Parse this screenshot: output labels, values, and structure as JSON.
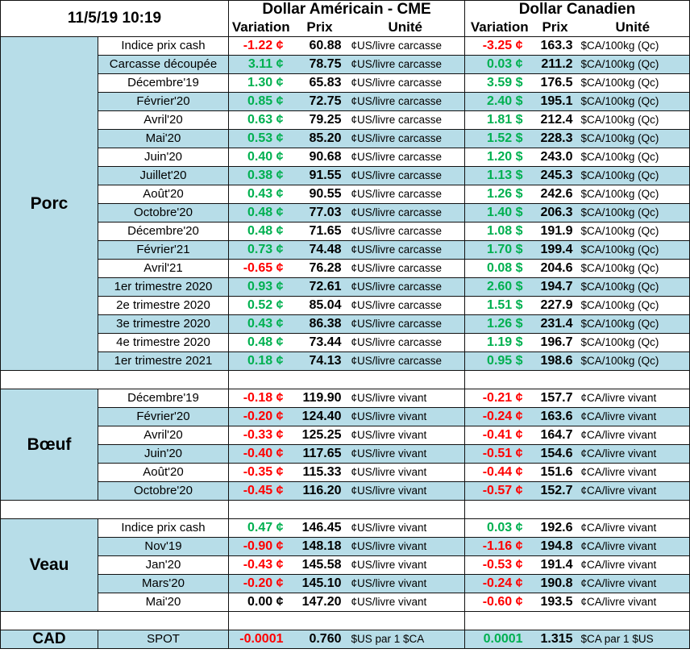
{
  "header": {
    "timestamp": "11/5/19 10:19",
    "usd_title": "Dollar Américain - CME",
    "cad_title": "Dollar Canadien",
    "col_variation": "Variation",
    "col_prix": "Prix",
    "col_unite": "Unité"
  },
  "colors": {
    "positive": "#00b050",
    "negative": "#ff0000",
    "band": "#b7dde8"
  },
  "porc": {
    "name": "Porc",
    "rows": [
      {
        "label": "Indice prix cash",
        "var_us": "-1.22 ¢",
        "prix_us": "60.88",
        "unit_us": "¢US/livre carcasse",
        "var_ca": "-3.25 ¢",
        "prix_ca": "163.3",
        "unit_ca": "$CA/100kg (Qc)"
      },
      {
        "label": "Carcasse découpée",
        "var_us": "3.11 ¢",
        "prix_us": "78.75",
        "unit_us": "¢US/livre carcasse",
        "var_ca": "0.03 ¢",
        "prix_ca": "211.2",
        "unit_ca": "$CA/100kg (Qc)"
      },
      {
        "label": "Décembre'19",
        "var_us": "1.30 ¢",
        "prix_us": "65.83",
        "unit_us": "¢US/livre carcasse",
        "var_ca": "3.59 $",
        "prix_ca": "176.5",
        "unit_ca": "$CA/100kg (Qc)"
      },
      {
        "label": "Février'20",
        "var_us": "0.85 ¢",
        "prix_us": "72.75",
        "unit_us": "¢US/livre carcasse",
        "var_ca": "2.40 $",
        "prix_ca": "195.1",
        "unit_ca": "$CA/100kg (Qc)"
      },
      {
        "label": "Avril'20",
        "var_us": "0.63 ¢",
        "prix_us": "79.25",
        "unit_us": "¢US/livre carcasse",
        "var_ca": "1.81 $",
        "prix_ca": "212.4",
        "unit_ca": "$CA/100kg (Qc)"
      },
      {
        "label": "Mai'20",
        "var_us": "0.53 ¢",
        "prix_us": "85.20",
        "unit_us": "¢US/livre carcasse",
        "var_ca": "1.52 $",
        "prix_ca": "228.3",
        "unit_ca": "$CA/100kg (Qc)"
      },
      {
        "label": "Juin'20",
        "var_us": "0.40 ¢",
        "prix_us": "90.68",
        "unit_us": "¢US/livre carcasse",
        "var_ca": "1.20 $",
        "prix_ca": "243.0",
        "unit_ca": "$CA/100kg (Qc)"
      },
      {
        "label": "Juillet'20",
        "var_us": "0.38 ¢",
        "prix_us": "91.55",
        "unit_us": "¢US/livre carcasse",
        "var_ca": "1.13 $",
        "prix_ca": "245.3",
        "unit_ca": "$CA/100kg (Qc)"
      },
      {
        "label": "Août'20",
        "var_us": "0.43 ¢",
        "prix_us": "90.55",
        "unit_us": "¢US/livre carcasse",
        "var_ca": "1.26 $",
        "prix_ca": "242.6",
        "unit_ca": "$CA/100kg (Qc)"
      },
      {
        "label": "Octobre'20",
        "var_us": "0.48 ¢",
        "prix_us": "77.03",
        "unit_us": "¢US/livre carcasse",
        "var_ca": "1.40 $",
        "prix_ca": "206.3",
        "unit_ca": "$CA/100kg (Qc)"
      },
      {
        "label": "Décembre'20",
        "var_us": "0.48 ¢",
        "prix_us": "71.65",
        "unit_us": "¢US/livre carcasse",
        "var_ca": "1.08 $",
        "prix_ca": "191.9",
        "unit_ca": "$CA/100kg (Qc)"
      },
      {
        "label": "Février'21",
        "var_us": "0.73 ¢",
        "prix_us": "74.48",
        "unit_us": "¢US/livre carcasse",
        "var_ca": "1.70 $",
        "prix_ca": "199.4",
        "unit_ca": "$CA/100kg (Qc)"
      },
      {
        "label": "Avril'21",
        "var_us": "-0.65 ¢",
        "prix_us": "76.28",
        "unit_us": "¢US/livre carcasse",
        "var_ca": "0.08 $",
        "prix_ca": "204.6",
        "unit_ca": "$CA/100kg (Qc)"
      },
      {
        "label": "1er trimestre 2020",
        "var_us": "0.93 ¢",
        "prix_us": "72.61",
        "unit_us": "¢US/livre carcasse",
        "var_ca": "2.60 $",
        "prix_ca": "194.7",
        "unit_ca": "$CA/100kg (Qc)"
      },
      {
        "label": "2e trimestre 2020",
        "var_us": "0.52 ¢",
        "prix_us": "85.04",
        "unit_us": "¢US/livre carcasse",
        "var_ca": "1.51 $",
        "prix_ca": "227.9",
        "unit_ca": "$CA/100kg (Qc)"
      },
      {
        "label": "3e trimestre 2020",
        "var_us": "0.43 ¢",
        "prix_us": "86.38",
        "unit_us": "¢US/livre carcasse",
        "var_ca": "1.26 $",
        "prix_ca": "231.4",
        "unit_ca": "$CA/100kg (Qc)"
      },
      {
        "label": "4e trimestre 2020",
        "var_us": "0.48 ¢",
        "prix_us": "73.44",
        "unit_us": "¢US/livre carcasse",
        "var_ca": "1.19 $",
        "prix_ca": "196.7",
        "unit_ca": "$CA/100kg (Qc)"
      },
      {
        "label": "1er trimestre 2021",
        "var_us": "0.18 ¢",
        "prix_us": "74.13",
        "unit_us": "¢US/livre carcasse",
        "var_ca": "0.95 $",
        "prix_ca": "198.6",
        "unit_ca": "$CA/100kg (Qc)"
      }
    ]
  },
  "boeuf": {
    "name": "Bœuf",
    "rows": [
      {
        "label": "Décembre'19",
        "var_us": "-0.18 ¢",
        "prix_us": "119.90",
        "unit_us": "¢US/livre vivant",
        "var_ca": "-0.21 ¢",
        "prix_ca": "157.7",
        "unit_ca": "¢CA/livre vivant"
      },
      {
        "label": "Février'20",
        "var_us": "-0.20 ¢",
        "prix_us": "124.40",
        "unit_us": "¢US/livre vivant",
        "var_ca": "-0.24 ¢",
        "prix_ca": "163.6",
        "unit_ca": "¢CA/livre vivant"
      },
      {
        "label": "Avril'20",
        "var_us": "-0.33 ¢",
        "prix_us": "125.25",
        "unit_us": "¢US/livre vivant",
        "var_ca": "-0.41 ¢",
        "prix_ca": "164.7",
        "unit_ca": "¢CA/livre vivant"
      },
      {
        "label": "Juin'20",
        "var_us": "-0.40 ¢",
        "prix_us": "117.65",
        "unit_us": "¢US/livre vivant",
        "var_ca": "-0.51 ¢",
        "prix_ca": "154.6",
        "unit_ca": "¢CA/livre vivant"
      },
      {
        "label": "Août'20",
        "var_us": "-0.35 ¢",
        "prix_us": "115.33",
        "unit_us": "¢US/livre vivant",
        "var_ca": "-0.44 ¢",
        "prix_ca": "151.6",
        "unit_ca": "¢CA/livre vivant"
      },
      {
        "label": "Octobre'20",
        "var_us": "-0.45 ¢",
        "prix_us": "116.20",
        "unit_us": "¢US/livre vivant",
        "var_ca": "-0.57 ¢",
        "prix_ca": "152.7",
        "unit_ca": "¢CA/livre vivant"
      }
    ]
  },
  "veau": {
    "name": "Veau",
    "rows": [
      {
        "label": "Indice prix cash",
        "var_us": "0.47 ¢",
        "prix_us": "146.45",
        "unit_us": "¢US/livre vivant",
        "var_ca": "0.03 ¢",
        "prix_ca": "192.6",
        "unit_ca": "¢CA/livre vivant"
      },
      {
        "label": "Nov'19",
        "var_us": "-0.90 ¢",
        "prix_us": "148.18",
        "unit_us": "¢US/livre vivant",
        "var_ca": "-1.16 ¢",
        "prix_ca": "194.8",
        "unit_ca": "¢CA/livre vivant"
      },
      {
        "label": "Jan'20",
        "var_us": "-0.43 ¢",
        "prix_us": "145.58",
        "unit_us": "¢US/livre vivant",
        "var_ca": "-0.53 ¢",
        "prix_ca": "191.4",
        "unit_ca": "¢CA/livre vivant"
      },
      {
        "label": "Mars'20",
        "var_us": "-0.20 ¢",
        "prix_us": "145.10",
        "unit_us": "¢US/livre vivant",
        "var_ca": "-0.24 ¢",
        "prix_ca": "190.8",
        "unit_ca": "¢CA/livre vivant"
      },
      {
        "label": "Mai'20",
        "var_us": "0.00 ¢",
        "prix_us": "147.20",
        "unit_us": "¢US/livre vivant",
        "var_ca": "-0.60 ¢",
        "prix_ca": "193.5",
        "unit_ca": "¢CA/livre vivant"
      }
    ]
  },
  "cad": {
    "name": "CAD",
    "label": "SPOT",
    "var_us": "-0.0001",
    "prix_us": "0.760",
    "unit_us": "$US par 1 $CA",
    "var_ca": "0.0001",
    "prix_ca": "1.315",
    "unit_ca": "$CA par 1 $US"
  }
}
